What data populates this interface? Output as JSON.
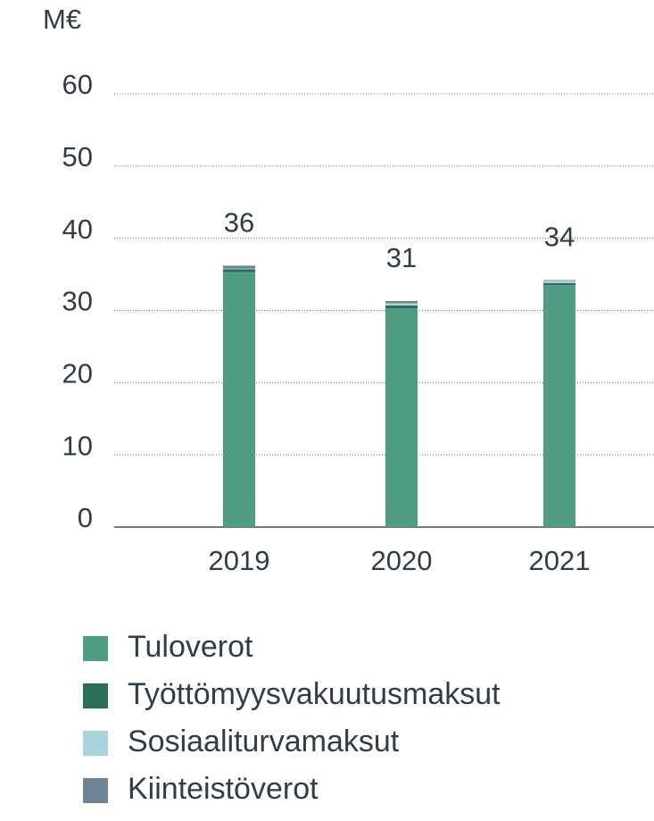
{
  "chart_data": {
    "type": "stacked_bar",
    "y_axis_label": "M€",
    "categories": [
      "2019",
      "2020",
      "2021"
    ],
    "series": [
      {
        "name": "Tuloverot",
        "color": "#4f9e84",
        "values": [
          35.3,
          30.3,
          33.5
        ]
      },
      {
        "name": "Työttömyysvakuutusmaksut",
        "color": "#2a6e55",
        "values": [
          0.4,
          0.4,
          0.3
        ]
      },
      {
        "name": "Sosiaaliturvamaksut",
        "color": "#a8d4e0",
        "values": [
          0.1,
          0.3,
          0.3
        ]
      },
      {
        "name": "Kiinteistöverot",
        "color": "#6e8494",
        "values": [
          0.4,
          0.3,
          0.1
        ]
      }
    ],
    "totals": [
      36,
      31,
      34
    ],
    "ylim": [
      0,
      60
    ],
    "yticks": [
      0,
      10,
      20,
      30,
      40,
      50,
      60
    ],
    "grid": true,
    "legend": "bottom"
  }
}
